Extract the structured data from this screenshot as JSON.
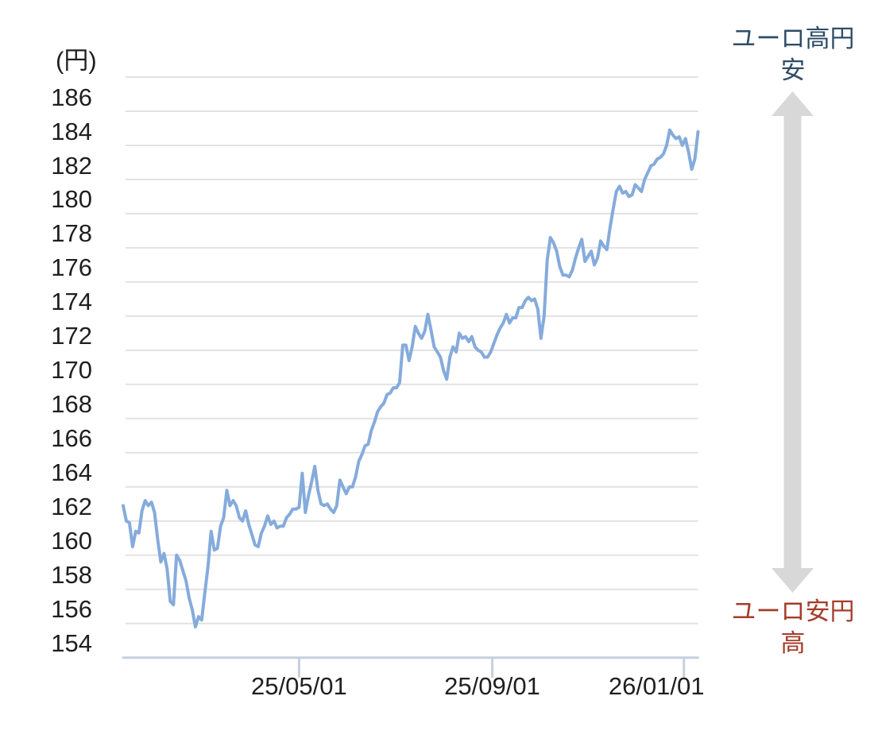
{
  "page": {
    "background": "#ffffff"
  },
  "chart_data": {
    "type": "line",
    "unit_label": "(円)",
    "ylabel": "(円)",
    "xlabel": "",
    "ylim": [
      153,
      187
    ],
    "y_ticks": [
      186,
      184,
      182,
      180,
      178,
      176,
      174,
      172,
      170,
      168,
      166,
      164,
      162,
      160,
      158,
      156,
      154
    ],
    "y_gridline_values": [
      187,
      185,
      183,
      181,
      179,
      177,
      175,
      173,
      171,
      169,
      167,
      165,
      163,
      161,
      159,
      157,
      155
    ],
    "y_axis_top_value": 187,
    "y_axis_bottom_value": 153,
    "x_ticks": [
      {
        "label": "25/05/01",
        "day": 112
      },
      {
        "label": "25/09/01",
        "day": 235
      },
      {
        "label": "26/01/01",
        "day": 357
      }
    ],
    "x_span_days": 366,
    "x_day_step": 2,
    "series_values": [
      161.9,
      161.0,
      160.9,
      159.5,
      160.4,
      160.3,
      161.6,
      162.2,
      161.9,
      162.1,
      161.5,
      159.9,
      158.6,
      159.1,
      158.2,
      156.3,
      156.1,
      159.0,
      158.7,
      158.1,
      157.5,
      156.5,
      155.8,
      154.8,
      155.4,
      155.2,
      156.8,
      158.3,
      160.4,
      159.3,
      159.4,
      160.7,
      161.2,
      162.8,
      161.9,
      162.2,
      161.9,
      161.2,
      161.0,
      161.6,
      160.8,
      160.2,
      159.6,
      159.5,
      160.3,
      160.7,
      161.3,
      160.8,
      161.0,
      160.6,
      160.7,
      160.7,
      161.2,
      161.4,
      161.7,
      161.7,
      161.8,
      163.8,
      161.5,
      162.5,
      163.3,
      164.2,
      162.8,
      162.0,
      161.9,
      162.0,
      161.7,
      161.5,
      161.9,
      163.4,
      163.0,
      162.6,
      163.0,
      163.0,
      163.6,
      164.5,
      164.9,
      165.4,
      165.5,
      166.3,
      166.8,
      167.4,
      167.7,
      167.9,
      168.4,
      168.5,
      168.8,
      168.8,
      169.1,
      171.3,
      171.3,
      170.4,
      171.2,
      172.4,
      172.0,
      171.7,
      172.1,
      173.1,
      172.2,
      171.2,
      170.9,
      170.6,
      169.8,
      169.3,
      170.6,
      171.2,
      170.9,
      172.0,
      171.7,
      171.8,
      171.5,
      171.8,
      171.2,
      171.0,
      170.9,
      170.6,
      170.6,
      170.9,
      171.4,
      171.9,
      172.3,
      172.6,
      173.1,
      172.6,
      172.9,
      172.9,
      173.5,
      173.5,
      173.9,
      174.1,
      173.9,
      174.0,
      173.4,
      171.7,
      173.0,
      176.3,
      177.6,
      177.3,
      176.8,
      175.9,
      175.4,
      175.4,
      175.3,
      175.7,
      176.4,
      177.0,
      177.5,
      176.2,
      176.5,
      176.8,
      176.0,
      176.4,
      177.4,
      177.1,
      176.9,
      178.2,
      179.3,
      180.3,
      180.6,
      180.2,
      180.3,
      180.0,
      180.1,
      180.7,
      180.5,
      180.3,
      181.0,
      181.4,
      181.8,
      181.9,
      182.2,
      182.3,
      182.5,
      183.0,
      183.9,
      183.6,
      183.4,
      183.5,
      183.0,
      183.4,
      182.6,
      181.6,
      182.2,
      183.8
    ],
    "line_color": "#85abdc",
    "gridline_color": "#e2e2e2",
    "axis_color": "#c5d0dd",
    "label_color": "#1f1f1f",
    "legend": "none",
    "grid": "horizontal-only"
  },
  "annotations": {
    "top": "ユーロ高円安",
    "bottom": "ユーロ安円高",
    "top_color": "#2f4d68",
    "bottom_color": "#a43d2b",
    "arrow_color": "#d8d8d8"
  }
}
